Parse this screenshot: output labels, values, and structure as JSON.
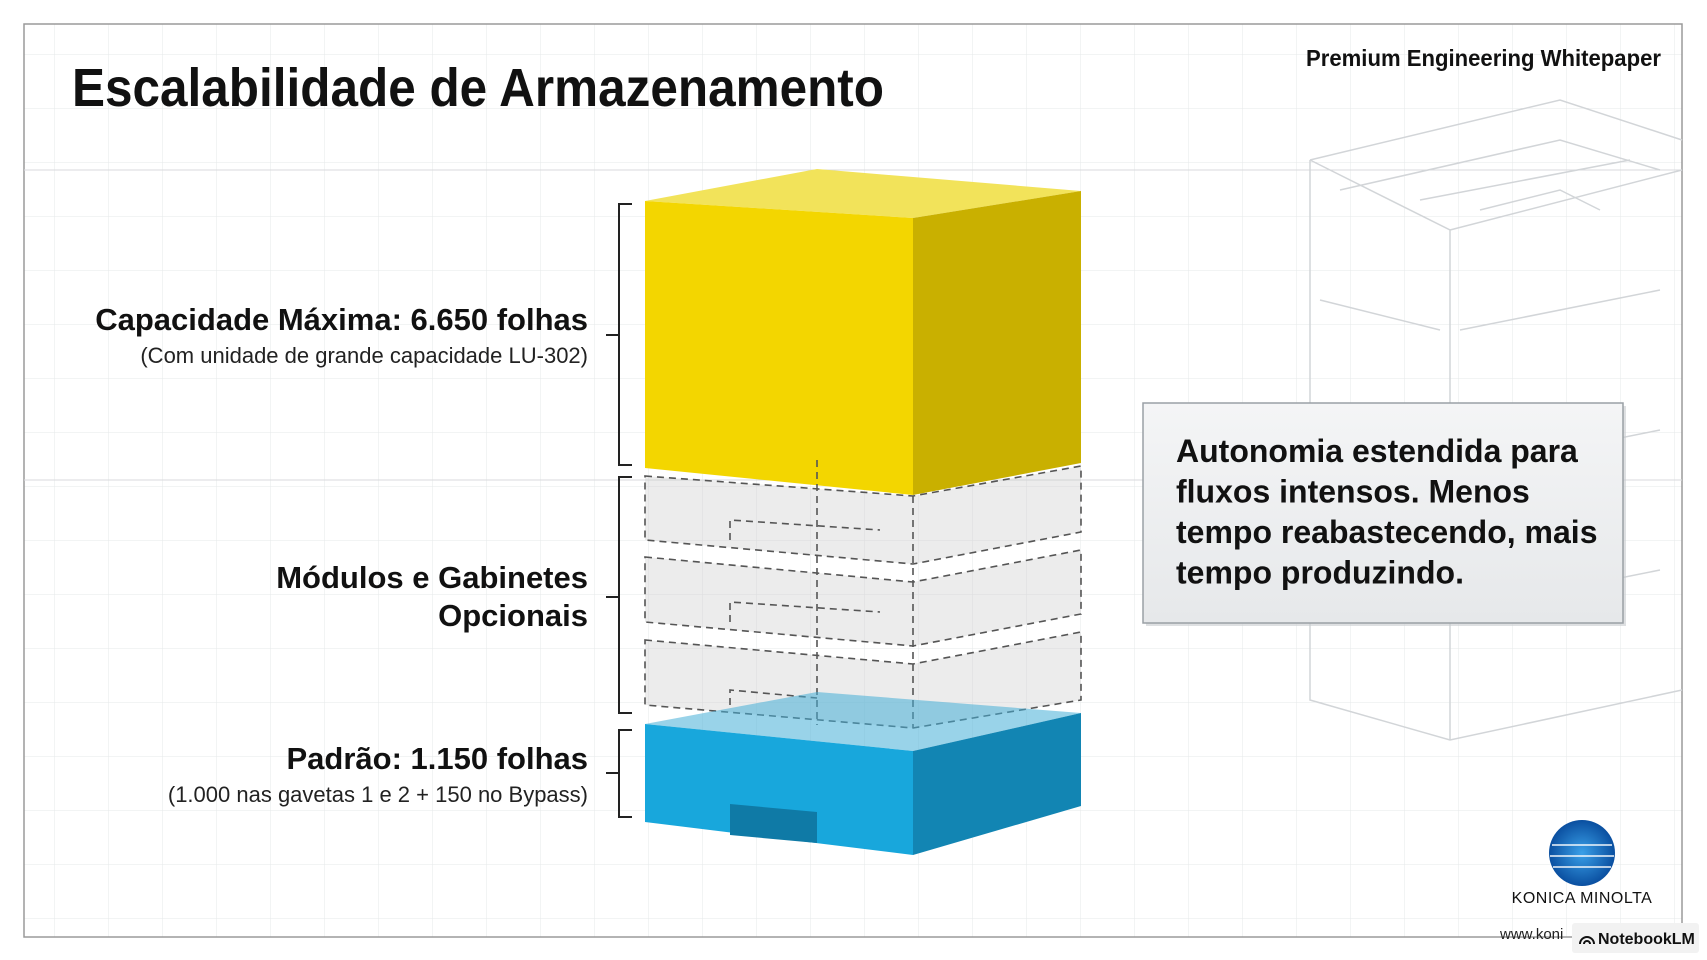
{
  "header": {
    "title": "Escalabilidade de Armazenamento",
    "tagline": "Premium Engineering Whitepaper"
  },
  "levels": [
    {
      "label_lines": [
        "Capacidade Máxima: 6.650 folhas"
      ],
      "note": "(Com unidade de grande capacidade LU-302)"
    },
    {
      "label_lines": [
        "Módulos e Gabinetes",
        "Opcionais"
      ]
    },
    {
      "label_lines": [
        "Padrão: 1.150 folhas"
      ],
      "note": "(1.000 nas gavetas 1 e 2 + 150 no Bypass)"
    }
  ],
  "callout": {
    "lines": [
      "Autonomia estendida para",
      "fluxos intensos. Menos",
      "tempo reabastecendo, mais",
      "tempo produzindo."
    ]
  },
  "logo": {
    "brand": "KONICA MINOLTA",
    "url": "www.koni"
  },
  "badge": "NotebookLM"
}
